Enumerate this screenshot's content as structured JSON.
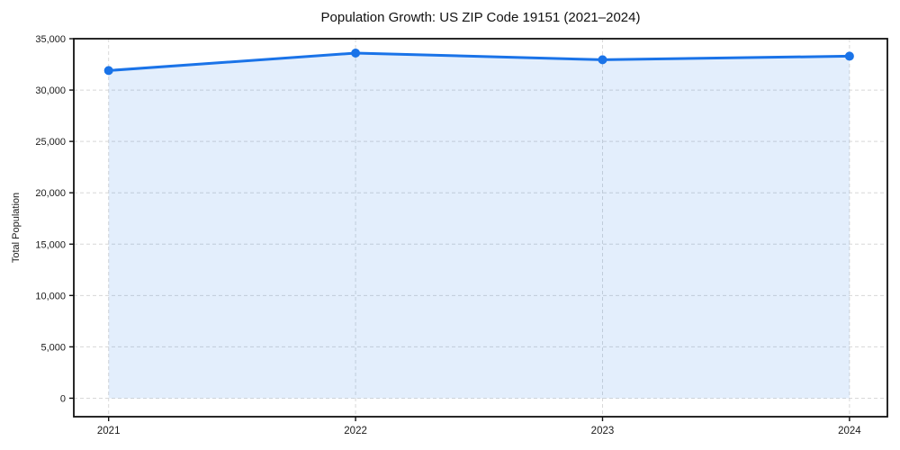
{
  "chart_data": {
    "type": "area",
    "title": "Population Growth: US ZIP Code 19151 (2021–2024)",
    "xlabel": "",
    "ylabel": "Total Population",
    "categories": [
      "2021",
      "2022",
      "2023",
      "2024"
    ],
    "series": [
      {
        "name": "Total Population",
        "values": [
          31900,
          33600,
          32950,
          33300
        ]
      }
    ],
    "ylim": [
      -1800,
      35000
    ],
    "yticks": [
      0,
      5000,
      10000,
      15000,
      20000,
      25000,
      30000,
      35000
    ],
    "ytick_labels": [
      "0",
      "5,000",
      "10,000",
      "15,000",
      "20,000",
      "25,000",
      "30,000",
      "35,000"
    ],
    "grid": true,
    "grid_style": "dashed",
    "legend": "none",
    "line_color": "#1a73e8",
    "fill_color": "#1a73e8",
    "fill_opacity": 0.12,
    "grid_color": "#d8d8d8",
    "spine_color": "#111111",
    "text_color": "#1a1a1a",
    "marker": "circle",
    "marker_size": 5,
    "background": "#ffffff"
  }
}
